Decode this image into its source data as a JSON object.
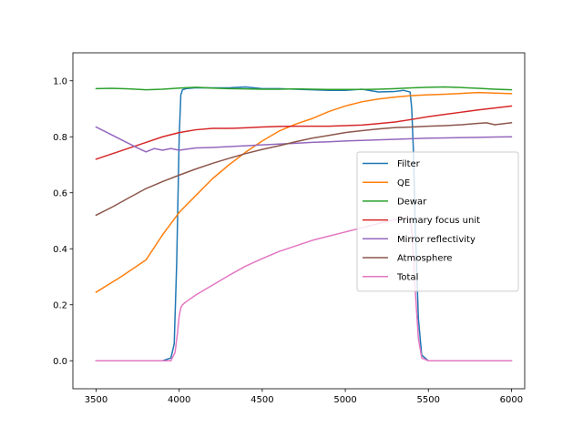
{
  "chart_data": {
    "type": "line",
    "title": "",
    "xlabel": "",
    "ylabel": "",
    "xlim": [
      3360,
      6080
    ],
    "ylim": [
      -0.1,
      1.1
    ],
    "xticks": [
      3500,
      4000,
      4500,
      5000,
      5500,
      6000
    ],
    "yticks": [
      0.0,
      0.2,
      0.4,
      0.6,
      0.8,
      1.0
    ],
    "xtick_labels": [
      "3500",
      "4000",
      "4500",
      "5000",
      "5500",
      "6000"
    ],
    "ytick_labels": [
      "0.0",
      "0.2",
      "0.4",
      "0.6",
      "0.8",
      "1.0"
    ],
    "grid": false,
    "legend_position": "center-right",
    "series": [
      {
        "name": "Filter",
        "color": "#1f77b4",
        "x": [
          3500,
          3900,
          3950,
          3970,
          3985,
          4000,
          4010,
          4020,
          4030,
          4040,
          4100,
          4200,
          4300,
          4400,
          4500,
          4600,
          4700,
          4800,
          4900,
          5000,
          5100,
          5200,
          5300,
          5350,
          5390,
          5400,
          5410,
          5420,
          5440,
          5460,
          5500,
          6000
        ],
        "y": [
          0.0,
          0.0,
          0.01,
          0.06,
          0.35,
          0.8,
          0.95,
          0.968,
          0.97,
          0.972,
          0.975,
          0.975,
          0.975,
          0.978,
          0.972,
          0.972,
          0.97,
          0.968,
          0.966,
          0.966,
          0.97,
          0.96,
          0.962,
          0.966,
          0.96,
          0.9,
          0.75,
          0.5,
          0.15,
          0.02,
          0.0,
          0.0
        ]
      },
      {
        "name": "QE",
        "color": "#ff7f0e",
        "x": [
          3500,
          3650,
          3800,
          3900,
          4000,
          4100,
          4200,
          4300,
          4400,
          4500,
          4600,
          4700,
          4800,
          4900,
          5000,
          5100,
          5200,
          5300,
          5400,
          5500,
          5600,
          5700,
          5800,
          5900,
          6000
        ],
        "y": [
          0.245,
          0.3,
          0.36,
          0.45,
          0.53,
          0.59,
          0.65,
          0.7,
          0.745,
          0.785,
          0.82,
          0.845,
          0.865,
          0.89,
          0.91,
          0.925,
          0.935,
          0.942,
          0.947,
          0.95,
          0.952,
          0.955,
          0.958,
          0.956,
          0.954
        ]
      },
      {
        "name": "Dewar",
        "color": "#2ca02c",
        "x": [
          3500,
          3600,
          3700,
          3800,
          3900,
          4000,
          4100,
          4200,
          4300,
          4400,
          4500,
          4600,
          4700,
          4800,
          4900,
          5000,
          5100,
          5200,
          5300,
          5400,
          5500,
          5600,
          5700,
          5800,
          5900,
          6000
        ],
        "y": [
          0.972,
          0.973,
          0.971,
          0.968,
          0.97,
          0.974,
          0.977,
          0.974,
          0.972,
          0.971,
          0.97,
          0.97,
          0.971,
          0.97,
          0.969,
          0.969,
          0.969,
          0.97,
          0.972,
          0.975,
          0.977,
          0.978,
          0.976,
          0.973,
          0.97,
          0.968
        ]
      },
      {
        "name": "Primary focus unit",
        "color": "#d62728",
        "x": [
          3500,
          3600,
          3700,
          3800,
          3900,
          4000,
          4100,
          4200,
          4300,
          4400,
          4500,
          4600,
          4700,
          4800,
          4900,
          5000,
          5100,
          5200,
          5300,
          5400,
          5500,
          5600,
          5700,
          5800,
          5900,
          6000
        ],
        "y": [
          0.72,
          0.74,
          0.76,
          0.78,
          0.8,
          0.815,
          0.825,
          0.83,
          0.83,
          0.832,
          0.835,
          0.837,
          0.838,
          0.838,
          0.838,
          0.84,
          0.842,
          0.847,
          0.853,
          0.862,
          0.872,
          0.88,
          0.888,
          0.896,
          0.903,
          0.91
        ]
      },
      {
        "name": "Mirror reflectivity",
        "color": "#9467bd",
        "x": [
          3500,
          3600,
          3700,
          3750,
          3800,
          3850,
          3900,
          3950,
          4000,
          4100,
          4200,
          4300,
          4400,
          4500,
          4600,
          4700,
          4800,
          4900,
          5000,
          5100,
          5200,
          5300,
          5400,
          5500,
          5600,
          5700,
          5800,
          5900,
          6000
        ],
        "y": [
          0.835,
          0.805,
          0.775,
          0.76,
          0.746,
          0.758,
          0.752,
          0.758,
          0.752,
          0.76,
          0.762,
          0.765,
          0.768,
          0.771,
          0.774,
          0.777,
          0.78,
          0.782,
          0.785,
          0.787,
          0.789,
          0.791,
          0.793,
          0.795,
          0.796,
          0.797,
          0.798,
          0.799,
          0.8
        ]
      },
      {
        "name": "Atmosphere",
        "color": "#8c564b",
        "x": [
          3500,
          3600,
          3700,
          3800,
          3900,
          4000,
          4100,
          4200,
          4300,
          4400,
          4500,
          4600,
          4700,
          4800,
          4900,
          5000,
          5100,
          5200,
          5300,
          5400,
          5500,
          5600,
          5700,
          5800,
          5850,
          5900,
          6000
        ],
        "y": [
          0.52,
          0.55,
          0.583,
          0.615,
          0.64,
          0.663,
          0.685,
          0.705,
          0.723,
          0.74,
          0.755,
          0.768,
          0.782,
          0.795,
          0.805,
          0.815,
          0.822,
          0.828,
          0.833,
          0.835,
          0.838,
          0.84,
          0.843,
          0.848,
          0.85,
          0.843,
          0.85
        ]
      },
      {
        "name": "Total",
        "color": "#e377c2",
        "x": [
          3500,
          3950,
          3975,
          3990,
          4000,
          4010,
          4020,
          4040,
          4100,
          4200,
          4300,
          4400,
          4500,
          4600,
          4700,
          4800,
          4900,
          5000,
          5100,
          5200,
          5300,
          5350,
          5390,
          5400,
          5410,
          5420,
          5440,
          5460,
          5500,
          6000
        ],
        "y": [
          0.0,
          0.0,
          0.03,
          0.1,
          0.16,
          0.19,
          0.2,
          0.21,
          0.235,
          0.27,
          0.305,
          0.338,
          0.365,
          0.39,
          0.41,
          0.43,
          0.445,
          0.46,
          0.475,
          0.49,
          0.505,
          0.51,
          0.505,
          0.47,
          0.37,
          0.26,
          0.08,
          0.01,
          0.0,
          0.0
        ]
      }
    ]
  }
}
